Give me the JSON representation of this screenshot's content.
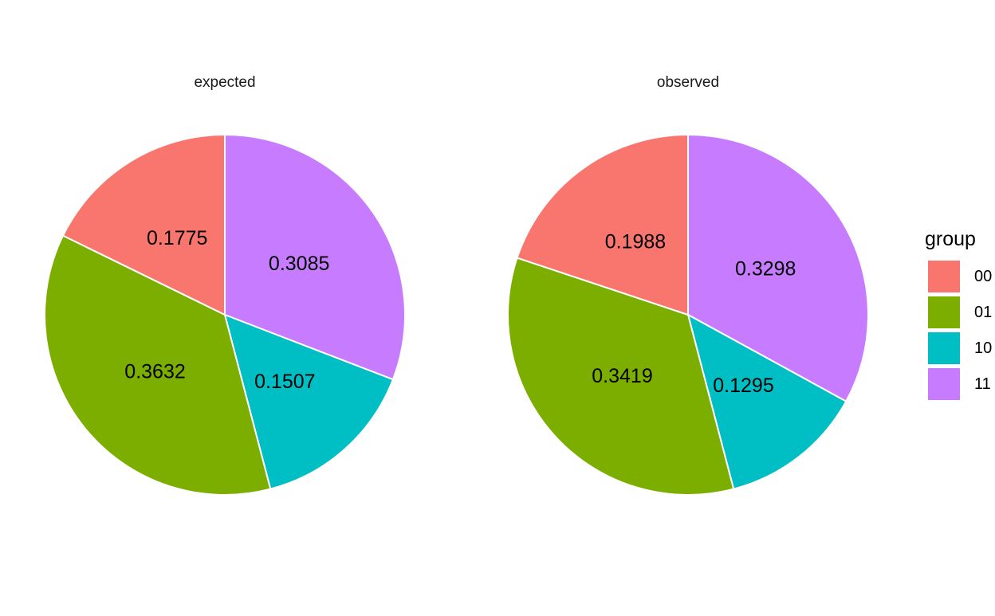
{
  "legend_title": "group",
  "chart_data": {
    "type": "pie",
    "legend": {
      "title": "group",
      "placement": "right",
      "entries": [
        {
          "label": "00",
          "color": "#F8766D"
        },
        {
          "label": "01",
          "color": "#7CAE00"
        },
        {
          "label": "10",
          "color": "#00BFC4"
        },
        {
          "label": "11",
          "color": "#C77CFF"
        }
      ]
    },
    "panels": [
      {
        "title": "expected",
        "slices": [
          {
            "group": "11",
            "value": 0.3085,
            "label": "0.3085"
          },
          {
            "group": "10",
            "value": 0.1507,
            "label": "0.1507"
          },
          {
            "group": "01",
            "value": 0.3632,
            "label": "0.3632"
          },
          {
            "group": "00",
            "value": 0.1775,
            "label": "0.1775"
          }
        ]
      },
      {
        "title": "observed",
        "slices": [
          {
            "group": "11",
            "value": 0.3298,
            "label": "0.3298"
          },
          {
            "group": "10",
            "value": 0.1295,
            "label": "0.1295"
          },
          {
            "group": "01",
            "value": 0.3419,
            "label": "0.3419"
          },
          {
            "group": "00",
            "value": 0.1988,
            "label": "0.1988"
          }
        ]
      }
    ]
  }
}
